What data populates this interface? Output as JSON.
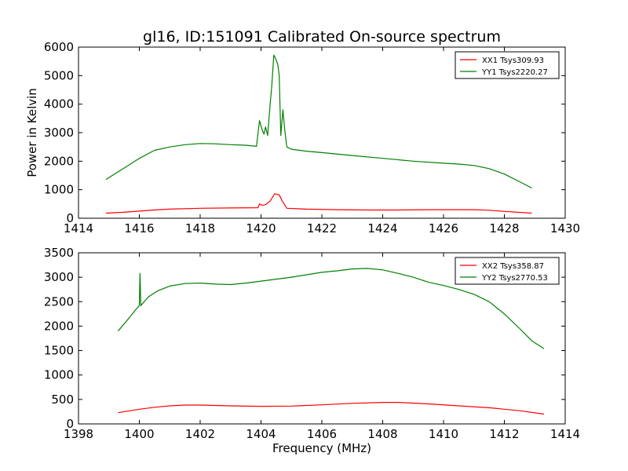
{
  "title": "gl16, ID:151091 Calibrated On-source spectrum",
  "colors": {
    "xx": "#ff0000",
    "yy": "#008000"
  },
  "chart_data": [
    {
      "type": "line",
      "xlabel": "",
      "ylabel": "Power in Kelvin",
      "xlim": [
        1414,
        1430
      ],
      "ylim": [
        0,
        6000
      ],
      "xticks": [
        1414,
        1416,
        1418,
        1420,
        1422,
        1424,
        1426,
        1428,
        1430
      ],
      "yticks": [
        0,
        1000,
        2000,
        3000,
        4000,
        5000,
        6000
      ],
      "legend_position": "top-right",
      "series": [
        {
          "name": "XX1 Tsys309.93",
          "color": "#ff0000",
          "x": [
            1414.9,
            1415.5,
            1416.0,
            1416.5,
            1417.0,
            1418.0,
            1419.0,
            1419.9,
            1419.95,
            1420.05,
            1420.15,
            1420.3,
            1420.45,
            1420.6,
            1420.7,
            1420.85,
            1421.5,
            1422.5,
            1423.5,
            1424.5,
            1425.5,
            1426.5,
            1427.0,
            1427.5,
            1428.0,
            1428.9
          ],
          "y": [
            180,
            210,
            250,
            290,
            320,
            350,
            360,
            370,
            500,
            450,
            480,
            600,
            860,
            820,
            600,
            350,
            320,
            300,
            290,
            290,
            300,
            300,
            300,
            280,
            240,
            180
          ]
        },
        {
          "name": "YY1 Tsys2220.27",
          "color": "#008000",
          "x": [
            1414.9,
            1415.5,
            1416.0,
            1416.5,
            1417.0,
            1417.5,
            1418.0,
            1418.5,
            1419.0,
            1419.5,
            1419.85,
            1419.95,
            1420.05,
            1420.1,
            1420.15,
            1420.22,
            1420.3,
            1420.35,
            1420.42,
            1420.48,
            1420.55,
            1420.6,
            1420.65,
            1420.72,
            1420.78,
            1420.85,
            1421.0,
            1421.5,
            1422.0,
            1423.0,
            1424.0,
            1425.0,
            1426.0,
            1426.5,
            1427.0,
            1427.5,
            1428.0,
            1428.5,
            1428.9
          ],
          "y": [
            1360,
            1760,
            2100,
            2380,
            2500,
            2580,
            2620,
            2610,
            2580,
            2560,
            2520,
            3420,
            3060,
            2950,
            3200,
            2900,
            4000,
            4600,
            5720,
            5600,
            5400,
            5000,
            2900,
            3800,
            3100,
            2500,
            2420,
            2350,
            2300,
            2200,
            2100,
            2000,
            1930,
            1900,
            1850,
            1740,
            1550,
            1280,
            1060
          ]
        }
      ]
    },
    {
      "type": "line",
      "xlabel": "Frequency (MHz)",
      "ylabel": "",
      "xlim": [
        1398,
        1414
      ],
      "ylim": [
        0,
        3500
      ],
      "xticks": [
        1398,
        1400,
        1402,
        1404,
        1406,
        1408,
        1410,
        1412,
        1414
      ],
      "yticks": [
        0,
        500,
        1000,
        1500,
        2000,
        2500,
        3000,
        3500
      ],
      "legend_position": "top-right",
      "series": [
        {
          "name": "XX2 Tsys358.87",
          "color": "#ff0000",
          "x": [
            1399.3,
            1400.0,
            1400.5,
            1401.0,
            1401.5,
            1402.0,
            1403.0,
            1404.0,
            1405.0,
            1406.0,
            1407.0,
            1408.0,
            1408.5,
            1409.5,
            1410.5,
            1411.5,
            1412.5,
            1413.3
          ],
          "y": [
            230,
            300,
            340,
            370,
            385,
            385,
            370,
            360,
            365,
            390,
            420,
            440,
            440,
            410,
            370,
            330,
            270,
            200
          ]
        },
        {
          "name": "YY2 Tsys2770.53",
          "color": "#008000",
          "x": [
            1399.3,
            1399.6,
            1399.9,
            1400.0,
            1400.02,
            1400.05,
            1400.3,
            1400.6,
            1401.0,
            1401.5,
            1402.0,
            1402.5,
            1403.0,
            1403.5,
            1404.0,
            1404.5,
            1405.0,
            1405.5,
            1406.0,
            1406.5,
            1407.0,
            1407.5,
            1408.0,
            1408.5,
            1409.0,
            1409.5,
            1410.0,
            1410.5,
            1411.0,
            1411.5,
            1412.0,
            1412.5,
            1412.9,
            1413.3
          ],
          "y": [
            1900,
            2120,
            2350,
            2420,
            3080,
            2420,
            2600,
            2720,
            2820,
            2870,
            2880,
            2860,
            2850,
            2880,
            2920,
            2960,
            3000,
            3050,
            3100,
            3130,
            3170,
            3180,
            3150,
            3080,
            3000,
            2900,
            2830,
            2750,
            2650,
            2500,
            2250,
            1950,
            1700,
            1540
          ]
        }
      ]
    }
  ]
}
